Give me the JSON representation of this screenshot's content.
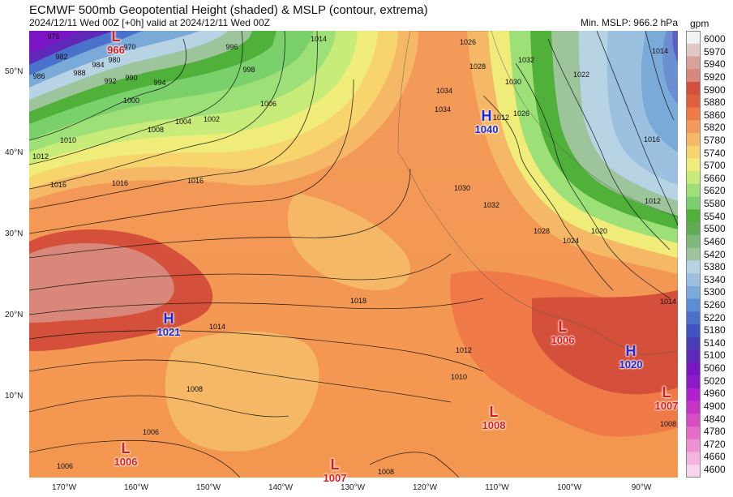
{
  "header": {
    "title": "ECMWF 500mb Geopotential Height (shaded) & MSLP (contour, extrema)",
    "subtitle": "2024/12/11 Wed 00Z [+0h] valid at 2024/12/11 Wed 00Z",
    "min_mslp": "Min. MSLP: 966.2 hPa"
  },
  "colorbar": {
    "unit": "gpm",
    "labels": [
      "6000",
      "5970",
      "5940",
      "5920",
      "5900",
      "5880",
      "5860",
      "5820",
      "5780",
      "5740",
      "5700",
      "5660",
      "5620",
      "5580",
      "5540",
      "5500",
      "5460",
      "5420",
      "5380",
      "5340",
      "5300",
      "5260",
      "5220",
      "5180",
      "5140",
      "5100",
      "5060",
      "5020",
      "4960",
      "4900",
      "4840",
      "4780",
      "4720",
      "4660",
      "4600"
    ],
    "colors": [
      "#f2f2f2",
      "#e0c8c8",
      "#d8a29a",
      "#d8877a",
      "#d4503a",
      "#e0603c",
      "#ef7a48",
      "#f39a5a",
      "#f5b866",
      "#f7d46c",
      "#f0ec7a",
      "#c8ec7a",
      "#9ee078",
      "#7ad06a",
      "#4fb03a",
      "#60ac52",
      "#7cba7a",
      "#9ec49c",
      "#b8d4e4",
      "#9cc0e0",
      "#7aaad8",
      "#5a8ed4",
      "#4a72cc",
      "#3e54c2",
      "#4a3cb8",
      "#6028b8",
      "#7a14c4",
      "#9018cc",
      "#b020d0",
      "#c834c8",
      "#d84cc4",
      "#e66cc8",
      "#ee90d4",
      "#f4b4e0",
      "#f8d4ee"
    ]
  },
  "axes": {
    "lat_labels": [
      "50°N",
      "40°N",
      "30°N",
      "20°N",
      "10°N"
    ],
    "lon_labels": [
      "170°W",
      "160°W",
      "150°W",
      "140°W",
      "130°W",
      "120°W",
      "110°W",
      "100°W",
      "90°W"
    ]
  },
  "extrema": [
    {
      "type": "low",
      "symbol": "L",
      "value": "966"
    },
    {
      "type": "high",
      "symbol": "H",
      "value": "1040"
    },
    {
      "type": "high",
      "symbol": "H",
      "value": "1021"
    },
    {
      "type": "low",
      "symbol": "L",
      "value": "1006"
    },
    {
      "type": "high",
      "symbol": "H",
      "value": "1020"
    },
    {
      "type": "low",
      "symbol": "L",
      "value": "1008"
    },
    {
      "type": "low",
      "symbol": "L",
      "value": "1006"
    },
    {
      "type": "low",
      "symbol": "L",
      "value": "1007"
    },
    {
      "type": "low",
      "symbol": "L",
      "value": "1007"
    }
  ],
  "isobar_labels": [
    "976",
    "982",
    "986",
    "988",
    "984",
    "980",
    "970",
    "992",
    "990",
    "994",
    "1000",
    "996",
    "998",
    "1004",
    "1002",
    "1006",
    "1008",
    "1010",
    "1012",
    "1016",
    "1016",
    "1016",
    "1014",
    "1018",
    "1012",
    "1010",
    "1008",
    "1006",
    "1006",
    "1008",
    "1014",
    "1026",
    "1028",
    "1030",
    "1032",
    "1034",
    "1026",
    "1022",
    "1024",
    "1020",
    "1014",
    "1016",
    "1012",
    "1014",
    "1008",
    "1012",
    "1030",
    "1032",
    "1028",
    "1034"
  ]
}
